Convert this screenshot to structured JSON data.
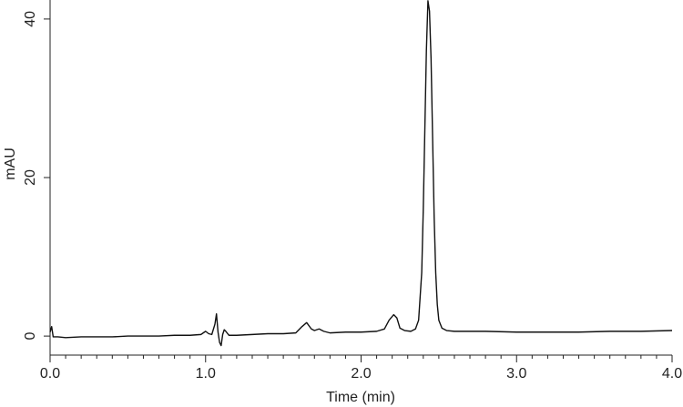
{
  "chart_data": {
    "type": "line",
    "xlabel": "Time (min)",
    "ylabel": "mAU",
    "xlim": [
      0,
      4
    ],
    "ylim": [
      -2.4,
      42.4
    ],
    "xticks": [
      {
        "value": 0,
        "label": "0.0"
      },
      {
        "value": 1,
        "label": "1.0"
      },
      {
        "value": 2,
        "label": "2.0"
      },
      {
        "value": 3,
        "label": "3.0"
      },
      {
        "value": 4,
        "label": "4.0"
      }
    ],
    "xminor_ticks": [
      0.1,
      0.2,
      0.3,
      0.4,
      0.5,
      0.6,
      0.7,
      0.8,
      0.9,
      1.1,
      1.2,
      1.3,
      1.4,
      1.5,
      1.6,
      1.7,
      1.8,
      1.9,
      2.1,
      2.2,
      2.3,
      2.4,
      2.5,
      2.6,
      2.7,
      2.8,
      2.9,
      3.1,
      3.2,
      3.3,
      3.4,
      3.5,
      3.6,
      3.7,
      3.8,
      3.9
    ],
    "yticks": [
      0,
      20,
      40
    ],
    "color": "#111111",
    "x": [
      0,
      0.01,
      0.02,
      0.05,
      0.1,
      0.2,
      0.3,
      0.4,
      0.5,
      0.6,
      0.7,
      0.8,
      0.9,
      0.97,
      1.0,
      1.02,
      1.04,
      1.06,
      1.07,
      1.08,
      1.09,
      1.1,
      1.11,
      1.12,
      1.13,
      1.15,
      1.2,
      1.3,
      1.4,
      1.5,
      1.58,
      1.62,
      1.65,
      1.68,
      1.7,
      1.73,
      1.76,
      1.8,
      1.9,
      2.0,
      2.1,
      2.15,
      2.18,
      2.21,
      2.23,
      2.25,
      2.28,
      2.32,
      2.35,
      2.37,
      2.39,
      2.4,
      2.41,
      2.42,
      2.43,
      2.44,
      2.45,
      2.46,
      2.47,
      2.48,
      2.49,
      2.5,
      2.52,
      2.55,
      2.6,
      2.8,
      3.0,
      3.2,
      3.4,
      3.6,
      3.8,
      4.0
    ],
    "values": [
      0.5,
      1.2,
      -0.1,
      -0.1,
      -0.2,
      -0.1,
      -0.1,
      -0.1,
      0,
      0,
      0,
      0.1,
      0.1,
      0.2,
      0.6,
      0.3,
      0.2,
      1.5,
      2.8,
      0.5,
      -0.8,
      -1.2,
      0.2,
      0.8,
      0.6,
      0.1,
      0.1,
      0.2,
      0.3,
      0.3,
      0.4,
      1.2,
      1.7,
      0.9,
      0.7,
      0.9,
      0.6,
      0.4,
      0.5,
      0.5,
      0.6,
      0.9,
      2.0,
      2.7,
      2.3,
      1.0,
      0.7,
      0.6,
      0.9,
      2.0,
      8,
      16,
      26,
      36,
      42.3,
      41,
      35,
      25,
      15,
      8,
      4,
      2,
      1,
      0.7,
      0.6,
      0.6,
      0.5,
      0.5,
      0.5,
      0.6,
      0.6,
      0.7
    ]
  }
}
